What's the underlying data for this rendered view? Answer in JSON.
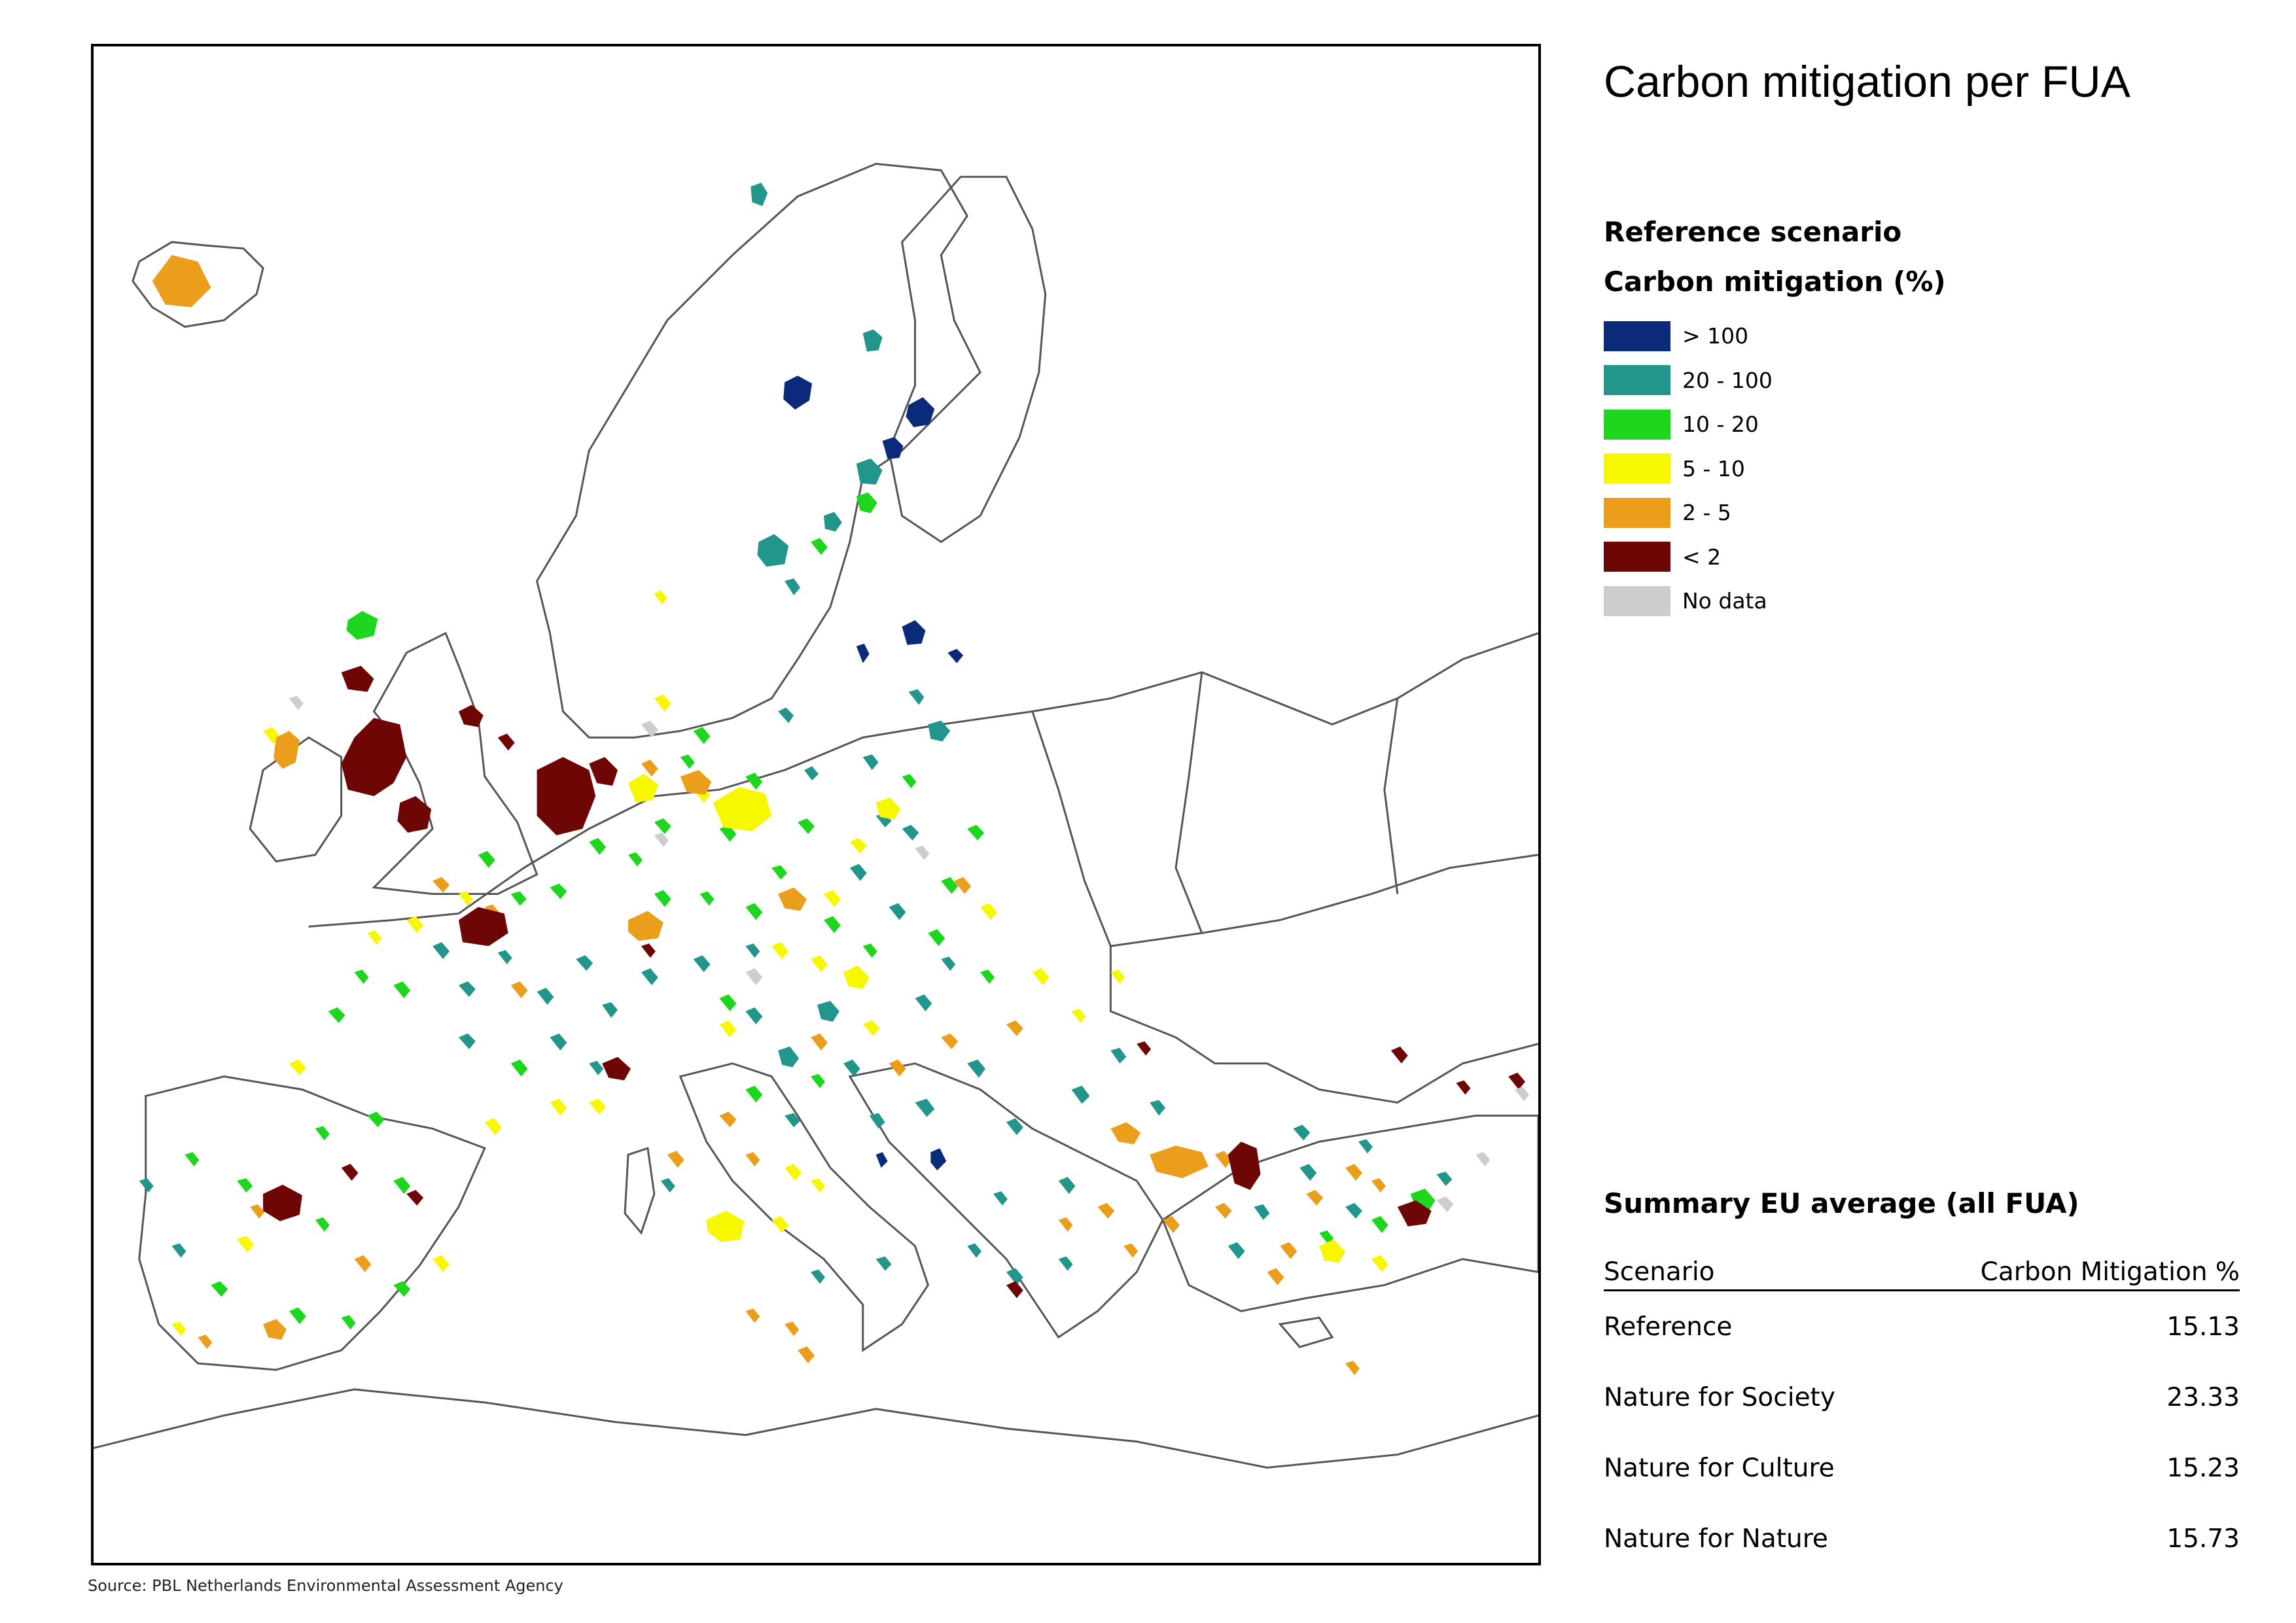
{
  "title": "Carbon mitigation per FUA",
  "scenario_heading": "Reference scenario",
  "legend": {
    "title": "Carbon mitigation (%)",
    "items": [
      {
        "label": "> 100",
        "color": "#0b2a7a"
      },
      {
        "label": "20 - 100",
        "color": "#23968c"
      },
      {
        "label": "10 - 20",
        "color": "#1fd61f"
      },
      {
        "label": "5 - 10",
        "color": "#f7f700"
      },
      {
        "label": "2 - 5",
        "color": "#eb9e1c"
      },
      {
        "label": "< 2",
        "color": "#6e0606"
      },
      {
        "label": "No data",
        "color": "#cdcdcd"
      }
    ]
  },
  "summary": {
    "title": "Summary EU average (all FUA)",
    "col_scenario": "Scenario",
    "col_value": "Carbon Mitigation %",
    "rows": [
      {
        "scenario": "Reference",
        "value": "15.13"
      },
      {
        "scenario": "Nature for Society",
        "value": "23.33"
      },
      {
        "scenario": "Nature for Culture",
        "value": "15.23"
      },
      {
        "scenario": "Nature for Nature",
        "value": "15.73"
      }
    ]
  },
  "source": "Source: PBL Netherlands Environmental Assessment Agency"
}
